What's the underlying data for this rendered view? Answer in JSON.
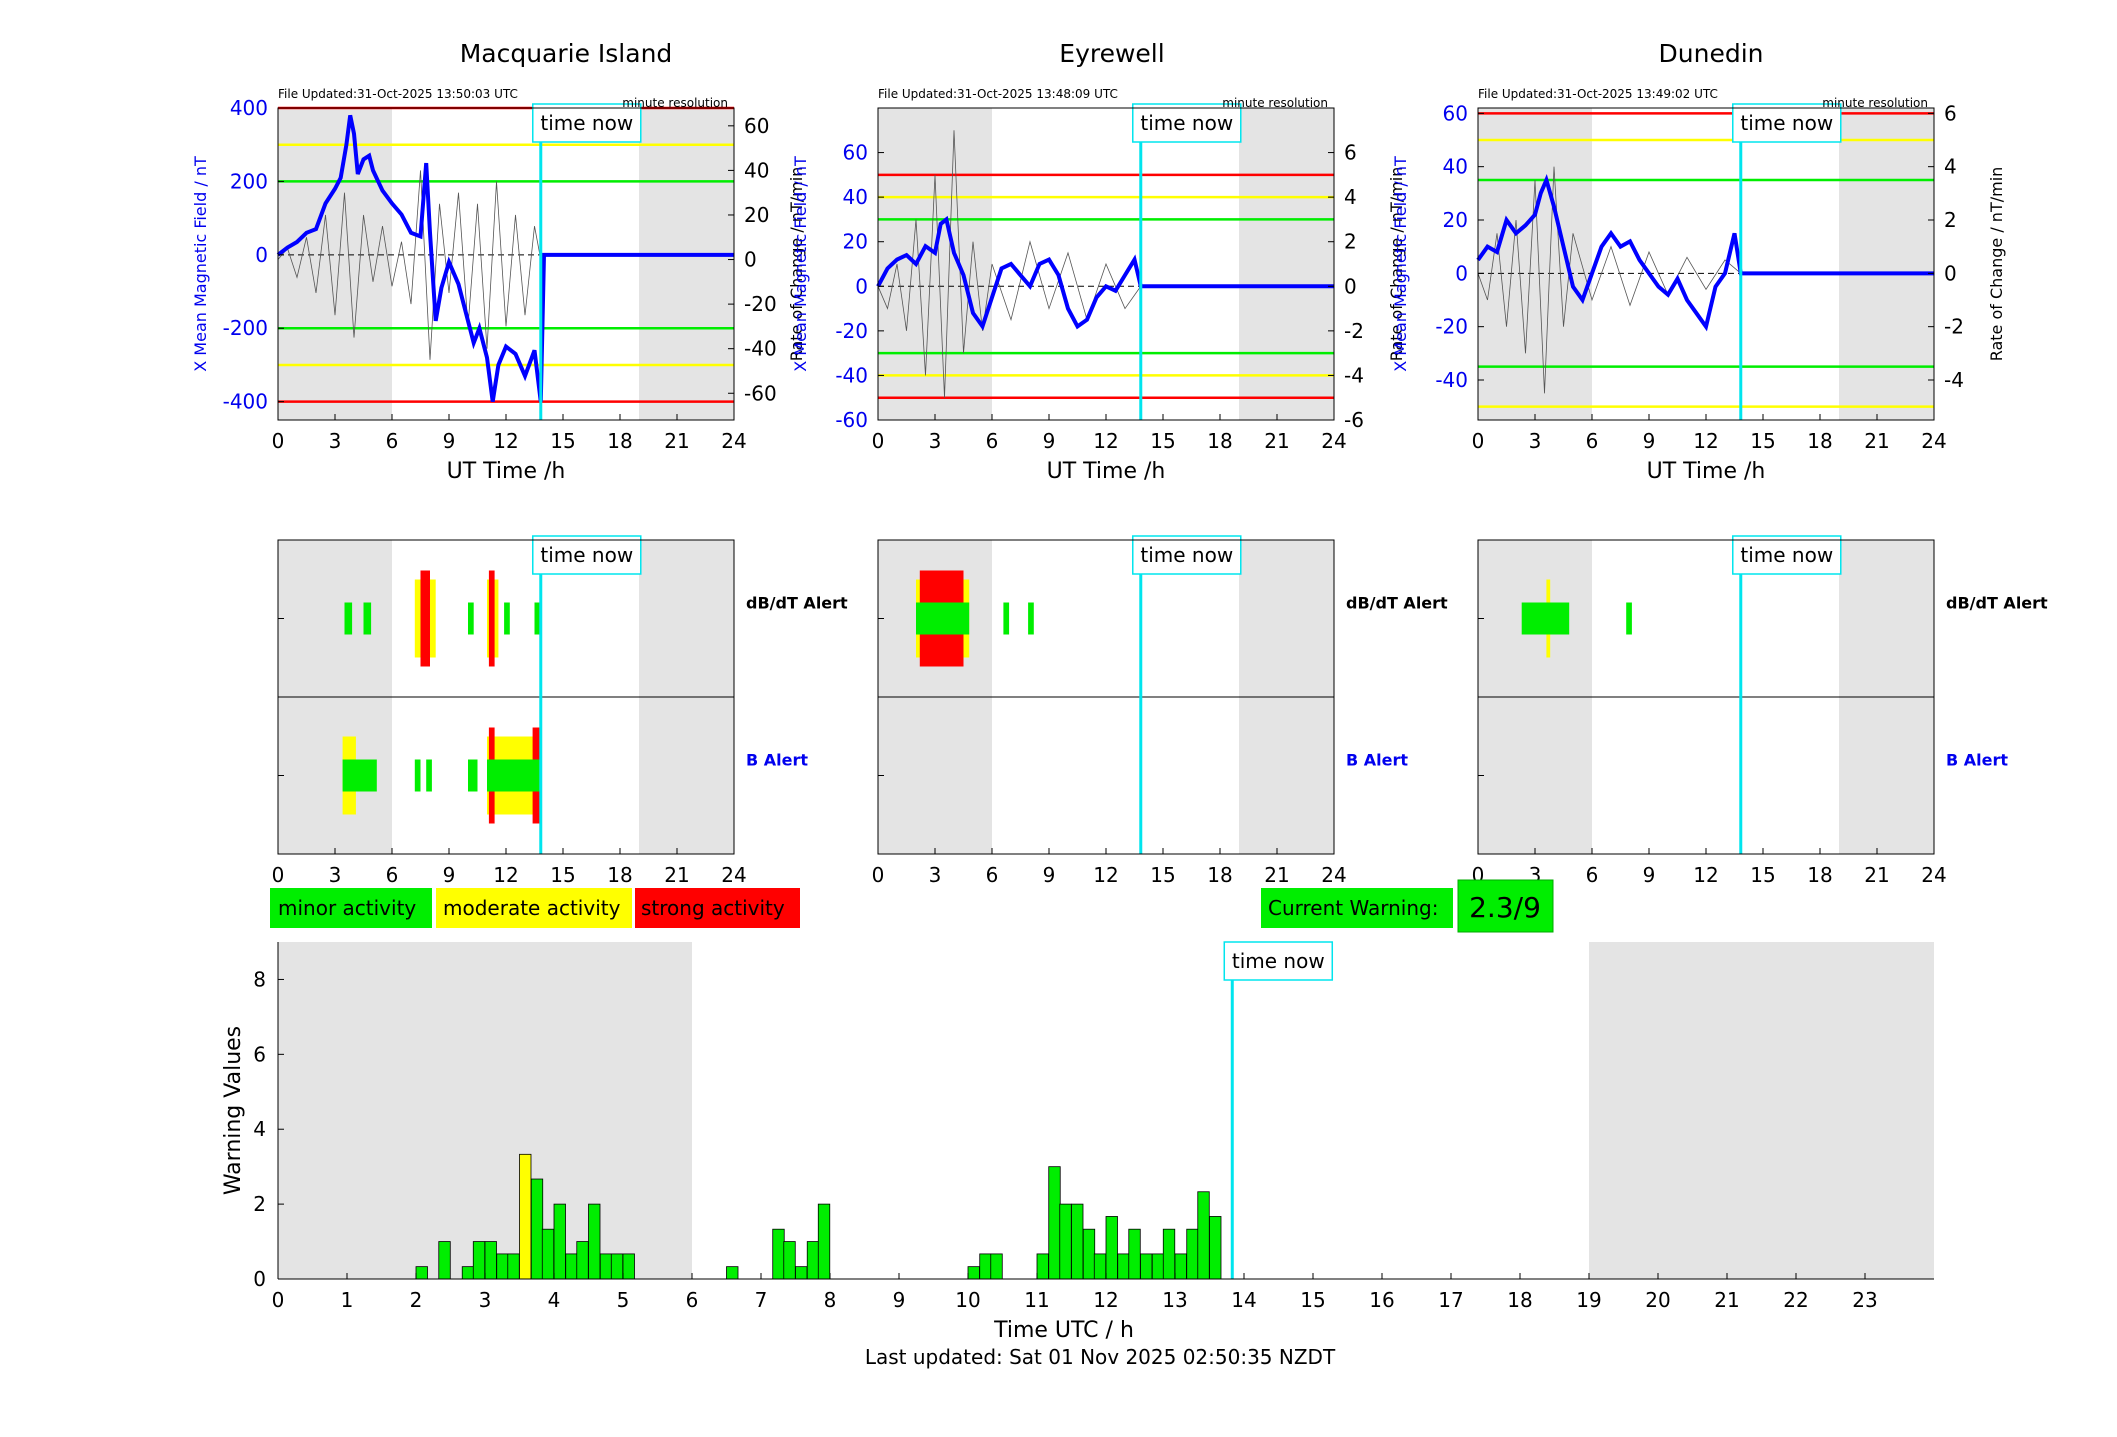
{
  "colors": {
    "night": "#e4e4e4",
    "field": "#0000ff",
    "rate": "#000000",
    "timenow": "#00e5ee",
    "green": "#00ee00",
    "yellow": "#ffff00",
    "red": "#ff0000",
    "tick_blue": "#0000ee"
  },
  "labels": {
    "time_now": "time now",
    "minute_resolution": "minute resolution",
    "ut_time": "UT Time /h",
    "field_axis": "X Mean Magnetic Field / nT",
    "rate_axis": "Rate of Change / nT/min",
    "dbdt_alert": "dB/dT Alert",
    "b_alert": "B Alert",
    "warning_axis": "Warning Values",
    "warning_xlabel": "Time UTC / h",
    "last_updated": "Last updated: Sat 01 Nov 2025 02:50:35 NZDT"
  },
  "legend": {
    "minor": "minor activity",
    "moderate": "moderate activity",
    "strong": "strong activity",
    "current_warning_label": "Current Warning:",
    "current_warning_value": "2.3/9"
  },
  "chart_data": [
    {
      "type": "line",
      "title": "Macquarie Island",
      "file_updated": "File Updated:31-Oct-2025 13:50:03 UTC",
      "xlim": [
        0,
        24
      ],
      "xticks": [
        0,
        3,
        6,
        9,
        12,
        15,
        18,
        21,
        24
      ],
      "ylim": [
        -450,
        400
      ],
      "yticks": [
        -400,
        -200,
        0,
        200,
        400
      ],
      "y2lim": [
        -72,
        68
      ],
      "y2ticks": [
        -60,
        -40,
        -20,
        0,
        20,
        40,
        60
      ],
      "thresholds": {
        "red": 400,
        "yellow": 300,
        "green": 200
      },
      "night": [
        [
          0,
          6
        ],
        [
          19,
          24
        ]
      ],
      "time_now": 13.83,
      "field_series": [
        [
          0,
          0
        ],
        [
          0.5,
          20
        ],
        [
          1,
          35
        ],
        [
          1.5,
          60
        ],
        [
          2,
          70
        ],
        [
          2.5,
          140
        ],
        [
          3,
          180
        ],
        [
          3.3,
          210
        ],
        [
          3.6,
          300
        ],
        [
          3.8,
          380
        ],
        [
          4,
          330
        ],
        [
          4.2,
          220
        ],
        [
          4.5,
          260
        ],
        [
          4.8,
          270
        ],
        [
          5,
          230
        ],
        [
          5.5,
          175
        ],
        [
          6,
          140
        ],
        [
          6.5,
          110
        ],
        [
          7,
          60
        ],
        [
          7.5,
          50
        ],
        [
          7.8,
          250
        ],
        [
          8,
          60
        ],
        [
          8.3,
          -180
        ],
        [
          8.6,
          -90
        ],
        [
          9,
          -20
        ],
        [
          9.5,
          -80
        ],
        [
          10,
          -180
        ],
        [
          10.3,
          -240
        ],
        [
          10.6,
          -200
        ],
        [
          11,
          -280
        ],
        [
          11.3,
          -400
        ],
        [
          11.6,
          -300
        ],
        [
          12,
          -250
        ],
        [
          12.5,
          -270
        ],
        [
          13,
          -330
        ],
        [
          13.5,
          -260
        ],
        [
          13.83,
          -400
        ],
        [
          14,
          0
        ],
        [
          24,
          0
        ]
      ],
      "rate_series": [
        [
          0,
          0
        ],
        [
          0.5,
          5
        ],
        [
          1,
          -8
        ],
        [
          1.5,
          10
        ],
        [
          2,
          -15
        ],
        [
          2.5,
          20
        ],
        [
          3,
          -25
        ],
        [
          3.5,
          30
        ],
        [
          4,
          -35
        ],
        [
          4.5,
          20
        ],
        [
          5,
          -10
        ],
        [
          5.5,
          15
        ],
        [
          6,
          -12
        ],
        [
          6.5,
          8
        ],
        [
          7,
          -20
        ],
        [
          7.5,
          40
        ],
        [
          8,
          -45
        ],
        [
          8.5,
          25
        ],
        [
          9,
          -15
        ],
        [
          9.5,
          30
        ],
        [
          10,
          -30
        ],
        [
          10.5,
          25
        ],
        [
          11,
          -40
        ],
        [
          11.5,
          35
        ],
        [
          12,
          -30
        ],
        [
          12.5,
          20
        ],
        [
          13,
          -25
        ],
        [
          13.5,
          15
        ],
        [
          13.83,
          0
        ]
      ]
    },
    {
      "type": "line",
      "title": "Eyrewell",
      "file_updated": "File Updated:31-Oct-2025 13:48:09 UTC",
      "xlim": [
        0,
        24
      ],
      "xticks": [
        0,
        3,
        6,
        9,
        12,
        15,
        18,
        21,
        24
      ],
      "ylim": [
        -60,
        80
      ],
      "yticks": [
        -60,
        -40,
        -20,
        0,
        20,
        40,
        60
      ],
      "y2lim": [
        -6,
        8
      ],
      "y2ticks": [
        -6,
        -4,
        -2,
        0,
        2,
        4,
        6
      ],
      "thresholds": {
        "red": 50,
        "yellow": 40,
        "green": 30
      },
      "night": [
        [
          0,
          6
        ],
        [
          19,
          24
        ]
      ],
      "time_now": 13.83,
      "field_series": [
        [
          0,
          0
        ],
        [
          0.5,
          8
        ],
        [
          1,
          12
        ],
        [
          1.5,
          14
        ],
        [
          2,
          10
        ],
        [
          2.5,
          18
        ],
        [
          3,
          15
        ],
        [
          3.3,
          28
        ],
        [
          3.6,
          30
        ],
        [
          4,
          15
        ],
        [
          4.5,
          5
        ],
        [
          5,
          -12
        ],
        [
          5.5,
          -18
        ],
        [
          6,
          -5
        ],
        [
          6.5,
          8
        ],
        [
          7,
          10
        ],
        [
          7.5,
          5
        ],
        [
          8,
          0
        ],
        [
          8.5,
          10
        ],
        [
          9,
          12
        ],
        [
          9.5,
          5
        ],
        [
          10,
          -10
        ],
        [
          10.5,
          -18
        ],
        [
          11,
          -15
        ],
        [
          11.5,
          -5
        ],
        [
          12,
          0
        ],
        [
          12.5,
          -2
        ],
        [
          13,
          5
        ],
        [
          13.5,
          12
        ],
        [
          13.83,
          0
        ],
        [
          14,
          0
        ],
        [
          24,
          0
        ]
      ],
      "rate_series": [
        [
          0,
          0
        ],
        [
          0.5,
          -1
        ],
        [
          1,
          1
        ],
        [
          1.5,
          -2
        ],
        [
          2,
          3
        ],
        [
          2.5,
          -4
        ],
        [
          3,
          5
        ],
        [
          3.5,
          -5
        ],
        [
          4,
          7
        ],
        [
          4.5,
          -3
        ],
        [
          5,
          2
        ],
        [
          5.5,
          -2
        ],
        [
          6,
          1
        ],
        [
          7,
          -1.5
        ],
        [
          8,
          2
        ],
        [
          9,
          -1
        ],
        [
          10,
          1.5
        ],
        [
          11,
          -1.5
        ],
        [
          12,
          1
        ],
        [
          13,
          -1
        ],
        [
          13.83,
          0
        ]
      ]
    },
    {
      "type": "line",
      "title": "Dunedin",
      "file_updated": "File Updated:31-Oct-2025 13:49:02 UTC",
      "xlim": [
        0,
        24
      ],
      "xticks": [
        0,
        3,
        6,
        9,
        12,
        15,
        18,
        21,
        24
      ],
      "ylim": [
        -55,
        62
      ],
      "yticks": [
        -40,
        -20,
        0,
        20,
        40,
        60
      ],
      "y2lim": [
        -5.5,
        6.2
      ],
      "y2ticks": [
        -4,
        -2,
        0,
        2,
        4,
        6
      ],
      "thresholds": {
        "red": 60,
        "yellow": 50,
        "green": 35
      },
      "night": [
        [
          0,
          6
        ],
        [
          19,
          24
        ]
      ],
      "time_now": 13.83,
      "field_series": [
        [
          0,
          5
        ],
        [
          0.5,
          10
        ],
        [
          1,
          8
        ],
        [
          1.5,
          20
        ],
        [
          2,
          15
        ],
        [
          2.5,
          18
        ],
        [
          3,
          22
        ],
        [
          3.3,
          30
        ],
        [
          3.6,
          35
        ],
        [
          4,
          25
        ],
        [
          4.5,
          10
        ],
        [
          5,
          -5
        ],
        [
          5.5,
          -10
        ],
        [
          6,
          0
        ],
        [
          6.5,
          10
        ],
        [
          7,
          15
        ],
        [
          7.5,
          10
        ],
        [
          8,
          12
        ],
        [
          8.5,
          5
        ],
        [
          9,
          0
        ],
        [
          9.5,
          -5
        ],
        [
          10,
          -8
        ],
        [
          10.5,
          -2
        ],
        [
          11,
          -10
        ],
        [
          11.5,
          -15
        ],
        [
          12,
          -20
        ],
        [
          12.5,
          -5
        ],
        [
          13,
          0
        ],
        [
          13.5,
          15
        ],
        [
          13.83,
          0
        ],
        [
          14,
          0
        ],
        [
          24,
          0
        ]
      ],
      "rate_series": [
        [
          0,
          0
        ],
        [
          0.5,
          -1
        ],
        [
          1,
          1.5
        ],
        [
          1.5,
          -2
        ],
        [
          2,
          2
        ],
        [
          2.5,
          -3
        ],
        [
          3,
          3.5
        ],
        [
          3.5,
          -4.5
        ],
        [
          4,
          4
        ],
        [
          4.5,
          -2
        ],
        [
          5,
          1.5
        ],
        [
          6,
          -1
        ],
        [
          7,
          1
        ],
        [
          8,
          -1.2
        ],
        [
          9,
          0.8
        ],
        [
          10,
          -0.8
        ],
        [
          11,
          0.6
        ],
        [
          12,
          -0.6
        ],
        [
          13,
          0.5
        ],
        [
          13.83,
          0
        ]
      ]
    },
    {
      "type": "alert",
      "station": "Macquarie Island",
      "xlim": [
        0,
        24
      ],
      "xticks": [
        0,
        3,
        6,
        9,
        12,
        15,
        18,
        21,
        24
      ],
      "night": [
        [
          0,
          6
        ],
        [
          19,
          24
        ]
      ],
      "time_now": 13.83,
      "dbdt": [
        [
          3.5,
          3.9,
          "green"
        ],
        [
          4.5,
          4.9,
          "green"
        ],
        [
          7.2,
          8.3,
          "yellow"
        ],
        [
          7.5,
          8.0,
          "red"
        ],
        [
          10.0,
          10.3,
          "green"
        ],
        [
          11.0,
          11.6,
          "yellow"
        ],
        [
          11.1,
          11.4,
          "red"
        ],
        [
          11.9,
          12.2,
          "green"
        ],
        [
          13.5,
          13.8,
          "green"
        ]
      ],
      "b": [
        [
          3.4,
          4.1,
          "yellow"
        ],
        [
          3.4,
          5.2,
          "green"
        ],
        [
          7.2,
          7.5,
          "green"
        ],
        [
          7.8,
          8.1,
          "green"
        ],
        [
          10.0,
          10.5,
          "green"
        ],
        [
          11.0,
          13.8,
          "yellow"
        ],
        [
          11.1,
          11.4,
          "red"
        ],
        [
          13.4,
          13.8,
          "red"
        ],
        [
          11.0,
          13.8,
          "green"
        ]
      ]
    },
    {
      "type": "alert",
      "station": "Eyrewell",
      "xlim": [
        0,
        24
      ],
      "xticks": [
        0,
        3,
        6,
        9,
        12,
        15,
        18,
        21,
        24
      ],
      "night": [
        [
          0,
          6
        ],
        [
          19,
          24
        ]
      ],
      "time_now": 13.83,
      "dbdt": [
        [
          2.0,
          4.8,
          "yellow"
        ],
        [
          2.2,
          4.5,
          "red"
        ],
        [
          2.0,
          4.8,
          "green"
        ],
        [
          6.6,
          6.9,
          "green"
        ],
        [
          7.9,
          8.2,
          "green"
        ]
      ],
      "b": []
    },
    {
      "type": "alert",
      "station": "Dunedin",
      "xlim": [
        0,
        24
      ],
      "xticks": [
        0,
        3,
        6,
        9,
        12,
        15,
        18,
        21,
        24
      ],
      "night": [
        [
          0,
          6
        ],
        [
          19,
          24
        ]
      ],
      "time_now": 13.83,
      "dbdt": [
        [
          3.6,
          3.8,
          "yellow"
        ],
        [
          2.3,
          4.8,
          "green"
        ],
        [
          7.8,
          8.1,
          "green"
        ]
      ],
      "b": []
    },
    {
      "type": "bar",
      "xlabel": "Time UTC / h",
      "ylabel": "Warning Values",
      "xlim": [
        0,
        24
      ],
      "ylim": [
        0,
        9
      ],
      "xticks": [
        0,
        1,
        2,
        3,
        4,
        5,
        6,
        7,
        8,
        9,
        10,
        11,
        12,
        13,
        14,
        15,
        16,
        17,
        18,
        19,
        20,
        21,
        22,
        23
      ],
      "yticks": [
        0,
        2,
        4,
        6,
        8
      ],
      "night": [
        [
          0,
          6
        ],
        [
          19,
          24
        ]
      ],
      "time_now": 13.83,
      "bin_width": 0.1667,
      "bars": [
        [
          2.0,
          0.33
        ],
        [
          2.33,
          1.0
        ],
        [
          2.67,
          0.33
        ],
        [
          2.83,
          1.0
        ],
        [
          3.0,
          1.0
        ],
        [
          3.17,
          0.67
        ],
        [
          3.33,
          0.67
        ],
        [
          3.5,
          3.33
        ],
        [
          3.67,
          2.67
        ],
        [
          3.83,
          1.33
        ],
        [
          4.0,
          2.0
        ],
        [
          4.17,
          0.67
        ],
        [
          4.33,
          1.0
        ],
        [
          4.5,
          2.0
        ],
        [
          4.67,
          0.67
        ],
        [
          4.83,
          0.67
        ],
        [
          5.0,
          0.67
        ],
        [
          6.5,
          0.33
        ],
        [
          7.17,
          1.33
        ],
        [
          7.33,
          1.0
        ],
        [
          7.5,
          0.33
        ],
        [
          7.67,
          1.0
        ],
        [
          7.83,
          2.0
        ],
        [
          10.0,
          0.33
        ],
        [
          10.17,
          0.67
        ],
        [
          10.33,
          0.67
        ],
        [
          11.0,
          0.67
        ],
        [
          11.17,
          3.0
        ],
        [
          11.33,
          2.0
        ],
        [
          11.5,
          2.0
        ],
        [
          11.67,
          1.33
        ],
        [
          11.83,
          0.67
        ],
        [
          12.0,
          1.67
        ],
        [
          12.17,
          0.67
        ],
        [
          12.33,
          1.33
        ],
        [
          12.5,
          0.67
        ],
        [
          12.67,
          0.67
        ],
        [
          12.83,
          1.33
        ],
        [
          13.0,
          0.67
        ],
        [
          13.17,
          1.33
        ],
        [
          13.33,
          2.33
        ],
        [
          13.5,
          1.67
        ]
      ],
      "bar_colors": {
        "3.5": "yellow"
      }
    }
  ]
}
